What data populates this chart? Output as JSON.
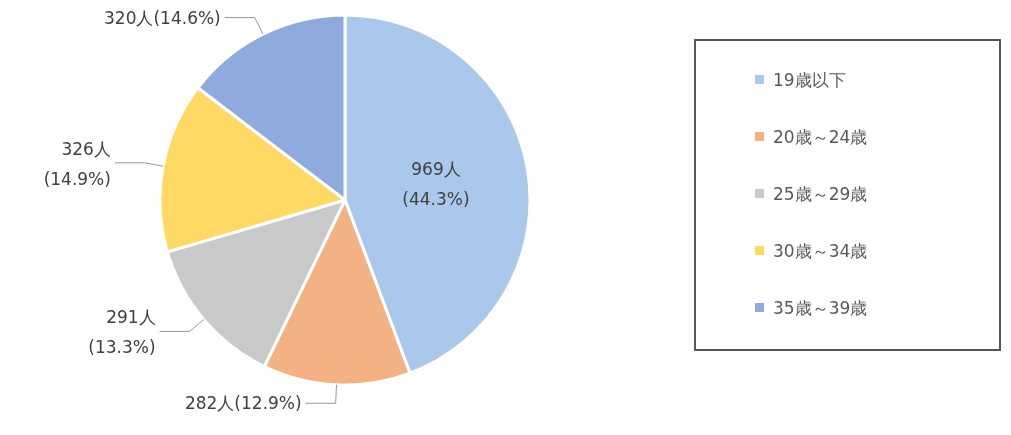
{
  "chart_data": {
    "type": "pie",
    "categories": [
      "19歳以下",
      "20歳～24歳",
      "25歳～29歳",
      "30歳～34歳",
      "35歳～39歳"
    ],
    "values": [
      969,
      282,
      291,
      326,
      320
    ],
    "colors": [
      "#a9c8ec",
      "#f4b183",
      "#c9c9c9",
      "#ffd966",
      "#8faadc"
    ],
    "value_labels": [
      "969人(44.3%)",
      "282人(12.9%)",
      "291人(13.3%)",
      "326人(14.9%)",
      "320人(14.6%)"
    ],
    "legend": "right"
  }
}
